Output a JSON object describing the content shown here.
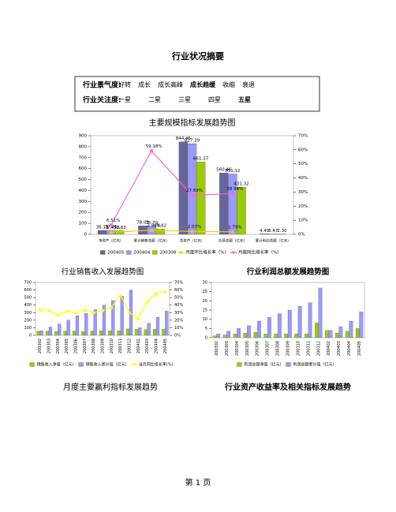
{
  "header": {
    "title": "行业状况摘要"
  },
  "summary": {
    "rows": [
      {
        "label": "行业景气度:",
        "options": [
          "好转",
          "成长",
          "成长高峰",
          "成长趋缓",
          "收缩",
          "衰退"
        ],
        "selected": 3
      },
      {
        "label": "行业关注度:",
        "options": [
          "一星",
          "二星",
          "三星",
          "四星",
          "五星"
        ],
        "selected": 4
      }
    ]
  },
  "chart_data": [
    {
      "type": "bar",
      "title": "主要规模指标发展趋势图",
      "categories": [
        "净资产（亿元）",
        "累计销售总额（亿元）",
        "总资产（亿元）",
        "负债总额（亿元）",
        "累计利润总额（亿元）"
      ],
      "series": [
        {
          "name": "200405",
          "color": "#666699",
          "values": [
            36.13,
            78.03,
            844.46,
            560.46,
            4.49
          ],
          "value_labels": [
            "36.13",
            "78.03",
            "844.46",
            "560.46",
            "4.49"
          ]
        },
        {
          "name": "200404",
          "color": "#9999ff",
          "values": [
            37.81,
            75.79,
            827.39,
            551.12,
            3.47
          ],
          "value_labels": [
            "37.81",
            "75.79",
            "827.39",
            "551.12",
            "3.47"
          ]
        },
        {
          "name": "200308",
          "color": "#99cc00",
          "values": [
            32.82,
            49.82,
            661.37,
            431.32,
            2.3
          ],
          "value_labels": [
            "32.82",
            "49.82",
            "661.37",
            "431.32",
            "2.30"
          ]
        },
        {
          "name": "月度环比增长率（%）",
          "color": "#ffcc00",
          "axis": "y2",
          "values": [
            1.45,
            2.9,
            2.07,
            1.79,
            null
          ],
          "value_labels": [
            "1.45%",
            "2.90%",
            "2.07%",
            "1.79%",
            null
          ]
        },
        {
          "name": "月度同比增长率（%）",
          "color": "#ff66cc",
          "axis": "y2",
          "values": [
            6.51,
            59.18,
            27.69,
            28.94,
            null
          ],
          "value_labels": [
            "6.51%",
            "59.18%",
            "27.69%",
            "28.94%",
            null
          ]
        }
      ],
      "ylim": [
        0,
        900
      ],
      "yticks": [
        0,
        100,
        200,
        300,
        400,
        500,
        600,
        700,
        800,
        900
      ],
      "y2lim": [
        0,
        70
      ],
      "y2ticks": [
        {
          "value": 0,
          "label": "0%"
        },
        {
          "value": 10,
          "label": "10%"
        },
        {
          "value": 20,
          "label": "20%"
        },
        {
          "value": 30,
          "label": "30%"
        },
        {
          "value": 40,
          "label": "40%"
        },
        {
          "value": 50,
          "label": "50%"
        },
        {
          "value": 60,
          "label": "60%"
        },
        {
          "value": 70,
          "label": "70%"
        }
      ]
    },
    {
      "type": "bar",
      "title": "行业销售收入发展趋势图",
      "categories": [
        "200302",
        "200303",
        "200304",
        "200305",
        "200306",
        "200307",
        "200308",
        "200309",
        "200310",
        "200311",
        "200312",
        "200402",
        "200403",
        "200404",
        "200405"
      ],
      "series": [
        {
          "name": "销售收入净值（亿元）",
          "color": "#99cc00",
          "values": [
            55,
            55,
            50,
            55,
            55,
            50,
            55,
            60,
            60,
            60,
            85,
            80,
            75,
            80,
            80
          ]
        },
        {
          "name": "销售收入累计值（亿元）",
          "color": "#9999ff",
          "values": [
            60,
            110,
            150,
            200,
            260,
            290,
            340,
            400,
            460,
            520,
            600,
            100,
            160,
            240,
            320
          ]
        },
        {
          "name": "当月同比增长率(%)",
          "color": "#ffff00",
          "axis": "y2",
          "values": [
            34,
            33,
            27,
            32,
            30,
            34,
            30,
            33,
            37,
            53,
            30,
            22,
            45,
            55,
            58
          ]
        }
      ],
      "ylim": [
        0,
        700
      ],
      "yticks": [
        0,
        100,
        200,
        300,
        400,
        500,
        600,
        700
      ],
      "y2lim": [
        0,
        70
      ],
      "y2ticks": [
        {
          "value": 0,
          "label": "0%"
        },
        {
          "value": 10,
          "label": "10%"
        },
        {
          "value": 20,
          "label": "20%"
        },
        {
          "value": 30,
          "label": "30%"
        },
        {
          "value": 40,
          "label": "40%"
        },
        {
          "value": 50,
          "label": "50%"
        },
        {
          "value": 60,
          "label": "60%"
        },
        {
          "value": 70,
          "label": "70%"
        }
      ]
    },
    {
      "type": "bar",
      "title": "行业利润总额发展趋势图",
      "categories": [
        "200302",
        "200303",
        "200304",
        "200305",
        "200306",
        "200307",
        "200308",
        "200309",
        "200310",
        "200311",
        "200312",
        "200402",
        "200403",
        "200404",
        "200405"
      ],
      "series": [
        {
          "name": "利润总额净值（亿元）",
          "color": "#99cc00",
          "values": [
            1,
            1.5,
            2,
            2.5,
            3,
            2,
            2,
            2,
            2,
            2,
            8,
            4,
            2.5,
            3.5,
            5
          ]
        },
        {
          "name": "利润总额累计值（亿元）",
          "color": "#9999ff",
          "values": [
            2,
            3.5,
            5,
            6.5,
            9,
            11,
            13,
            15,
            17,
            19,
            27,
            4,
            6,
            9,
            14
          ]
        }
      ],
      "ylim": [
        0,
        30
      ],
      "yticks": [
        0,
        5,
        10,
        15,
        20,
        25,
        30
      ]
    }
  ],
  "sections": [
    "月度主要赢利指标发展趋势",
    "行业资产收益率及相关指标发展趋势"
  ],
  "footer": "第 1 页"
}
